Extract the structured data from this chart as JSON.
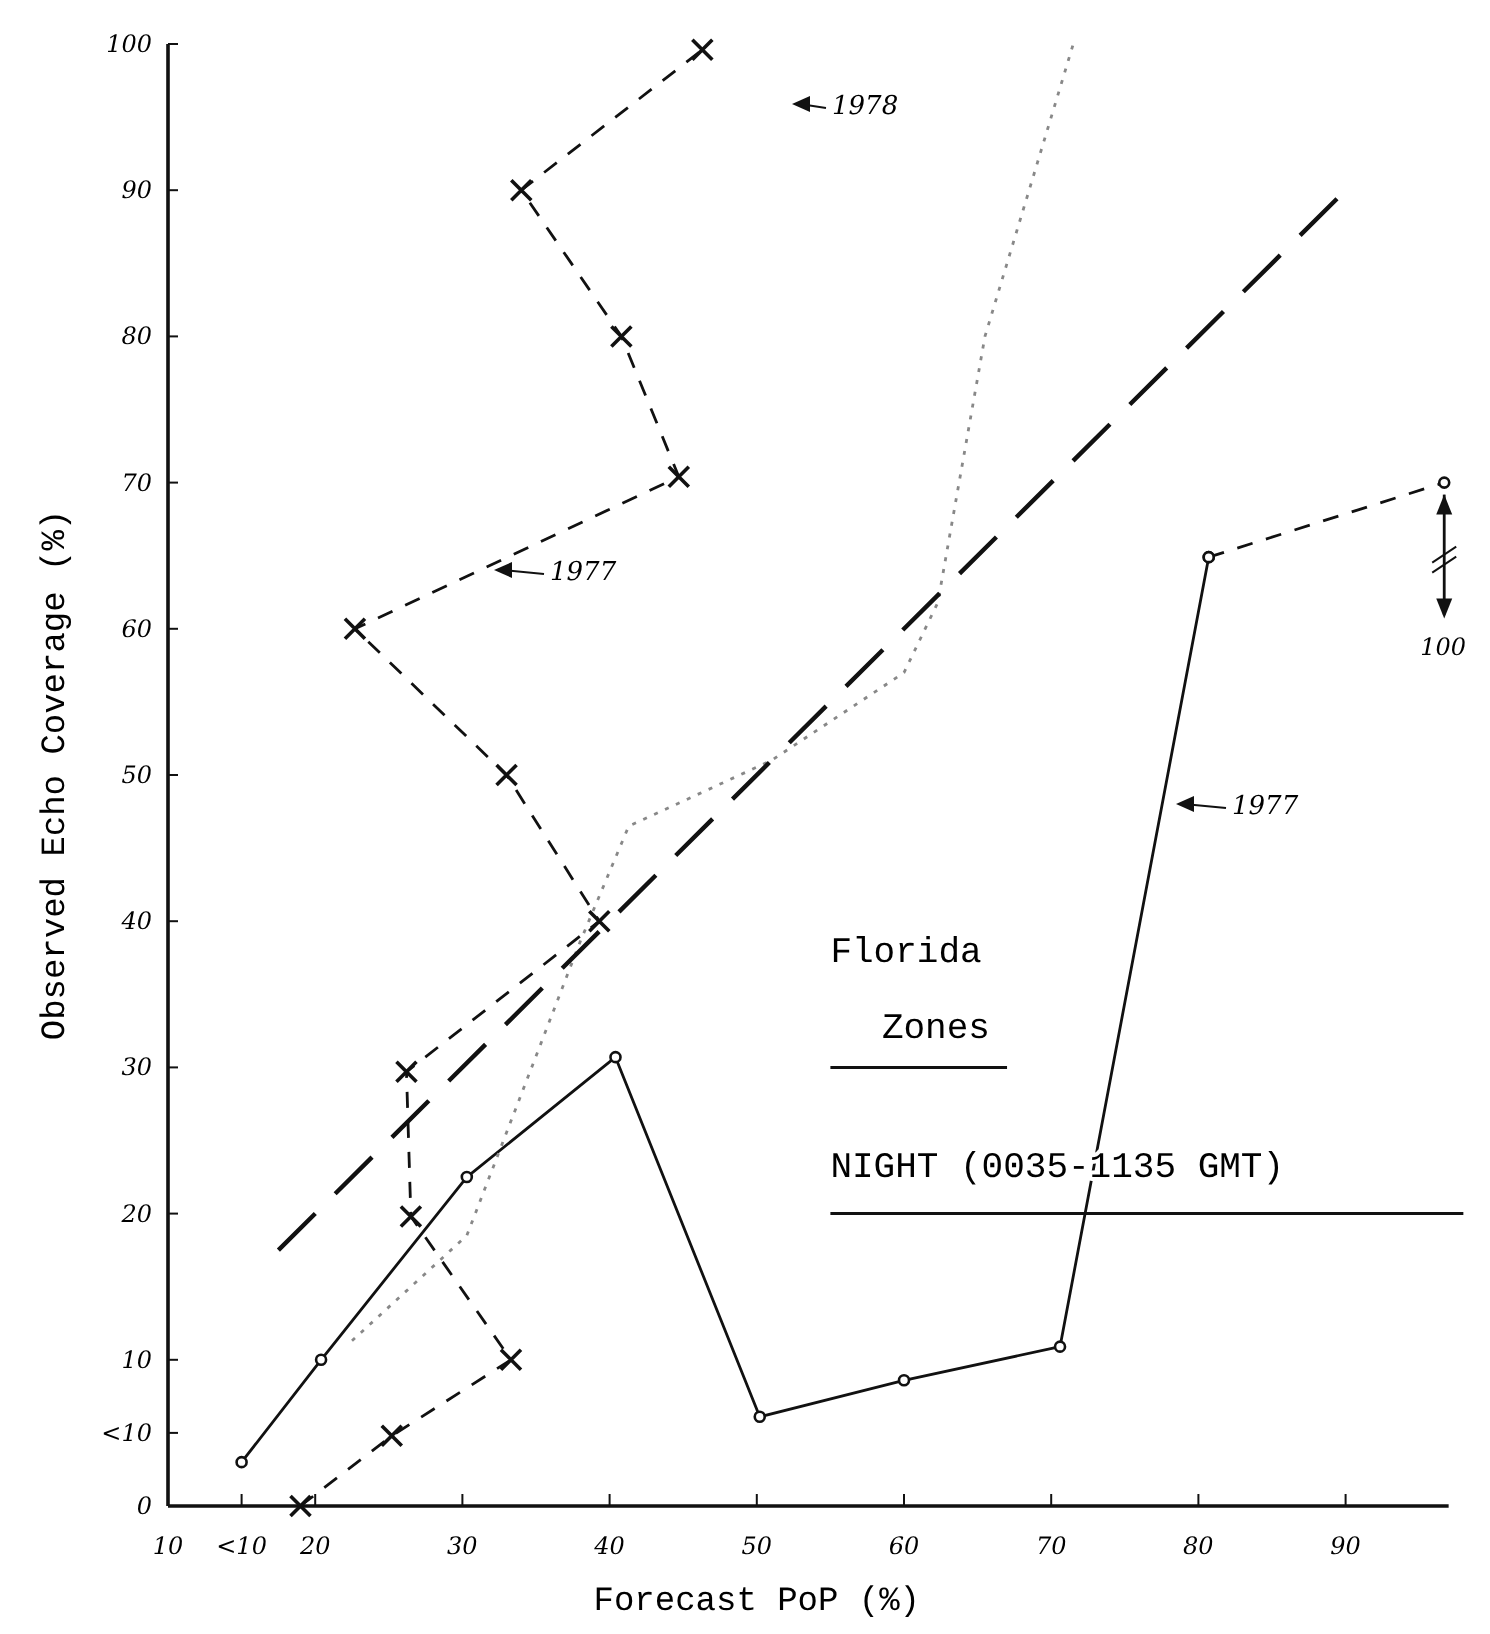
{
  "chart_data": {
    "type": "line",
    "title": "Florida Zones",
    "subtitle": "NIGHT (0035-1135 GMT)",
    "xlabel": "Forecast PoP (%)",
    "ylabel": "Observed Echo Coverage (%)",
    "xlim": [
      10,
      97
    ],
    "ylim": [
      0,
      100
    ],
    "xticks": [
      10,
      {
        "value": 15,
        "label": "<10"
      },
      20,
      30,
      40,
      50,
      60,
      70,
      80,
      90
    ],
    "yticks": [
      0,
      {
        "value": 5,
        "label": "<10"
      },
      10,
      20,
      30,
      40,
      50,
      60,
      70,
      80,
      90,
      100
    ],
    "series": [
      {
        "color": "#111111",
        "marker": "circle",
        "line_style": "solid",
        "x": [
          15,
          20.4,
          30.3,
          40.4,
          50.2,
          60,
          70.6,
          80.7
        ],
        "values": [
          3,
          10,
          22.5,
          30.7,
          6.1,
          8.6,
          10.9,
          64.9
        ]
      },
      {
        "color": "#111111",
        "marker": "circle",
        "line_style": "dashed",
        "x": [
          80.7,
          96.7
        ],
        "values": [
          64.9,
          70
        ]
      },
      {
        "color": "#111111",
        "marker": "cross",
        "line_style": "dashed",
        "x": [
          19,
          25.2,
          33.3,
          26.5,
          26.2,
          39.3,
          33,
          22.7,
          44.7,
          40.8,
          34,
          46.3
        ],
        "values": [
          0,
          4.8,
          10,
          19.8,
          29.7,
          40,
          50,
          60,
          70.4,
          80,
          90,
          99.6
        ]
      },
      {
        "color": "#888888",
        "marker": "none",
        "line_style": "dotted",
        "x": [
          22.5,
          30.3,
          38,
          41.3,
          51,
          60,
          62.3,
          65.5,
          71.5
        ],
        "values": [
          11.3,
          18.5,
          38.6,
          46.5,
          51,
          57,
          61.8,
          80,
          100
        ]
      },
      {
        "color": "#111111",
        "marker": "none",
        "line_style": "longdash",
        "x": [
          17.5,
          90
        ],
        "values": [
          17.5,
          90
        ]
      }
    ],
    "annotations": [
      "1977",
      "1977",
      "1978",
      {
        "text": "100",
        "x": 96.7,
        "y": 70
      }
    ]
  }
}
